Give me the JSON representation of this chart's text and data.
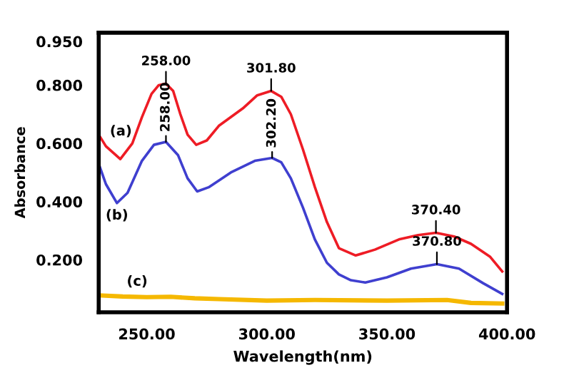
{
  "chart_data": {
    "type": "line",
    "xlabel": "Wavelength(nm)",
    "ylabel": "Absorbance",
    "xlim": [
      230,
      400
    ],
    "ylim": [
      0.02,
      0.98
    ],
    "xticks": [
      {
        "value": 250,
        "label": "250.00"
      },
      {
        "value": 300,
        "label": "300.00"
      },
      {
        "value": 350,
        "label": "350.00"
      },
      {
        "value": 400,
        "label": "400.00"
      }
    ],
    "yticks": [
      {
        "value": 0.2,
        "label": "0.200"
      },
      {
        "value": 0.4,
        "label": "0.400"
      },
      {
        "value": 0.6,
        "label": "0.600"
      },
      {
        "value": 0.8,
        "label": "0.800"
      },
      {
        "value": 0.95,
        "label": "0.950"
      }
    ],
    "grid": false,
    "legend": false,
    "marker": "none",
    "line_style": "solid",
    "series": [
      {
        "name": "(a)",
        "color": "#ee1c25",
        "x": [
          230,
          233,
          239,
          244,
          248,
          252,
          255,
          258,
          261,
          264,
          267,
          270.6,
          275,
          280,
          290,
          296,
          301.8,
          306,
          310,
          315,
          320,
          325,
          330,
          337,
          345,
          355,
          363,
          370.4,
          378,
          385,
          393,
          398
        ],
        "values": [
          0.63,
          0.59,
          0.546,
          0.6,
          0.69,
          0.77,
          0.8,
          0.805,
          0.78,
          0.7,
          0.63,
          0.595,
          0.61,
          0.66,
          0.72,
          0.765,
          0.78,
          0.76,
          0.7,
          0.58,
          0.45,
          0.33,
          0.24,
          0.215,
          0.235,
          0.27,
          0.285,
          0.293,
          0.28,
          0.255,
          0.21,
          0.16
        ]
      },
      {
        "name": "(b)",
        "color": "#3f3fcf",
        "x": [
          230,
          233,
          237.6,
          242,
          248,
          253,
          258,
          263,
          267,
          271,
          276,
          285,
          295,
          302.2,
          306,
          310,
          315,
          320,
          325,
          330,
          335,
          341,
          350,
          360,
          370.8,
          380,
          390,
          398
        ],
        "values": [
          0.53,
          0.46,
          0.395,
          0.43,
          0.54,
          0.595,
          0.605,
          0.56,
          0.48,
          0.435,
          0.45,
          0.5,
          0.54,
          0.55,
          0.535,
          0.48,
          0.38,
          0.27,
          0.19,
          0.15,
          0.13,
          0.122,
          0.14,
          0.17,
          0.185,
          0.17,
          0.12,
          0.083
        ]
      },
      {
        "name": "(c)",
        "color": "#f5b800",
        "x": [
          230,
          240,
          250,
          260,
          270,
          280,
          300,
          320,
          350,
          375,
          385,
          398
        ],
        "values": [
          0.078,
          0.074,
          0.072,
          0.073,
          0.068,
          0.065,
          0.06,
          0.062,
          0.06,
          0.062,
          0.052,
          0.05
        ]
      }
    ],
    "annotations": [
      {
        "text": "258.00",
        "x": 258,
        "y": 0.605
      },
      {
        "text": "258.00",
        "x": 258,
        "y": 0.805
      },
      {
        "text": "302.20",
        "x": 302.2,
        "y": 0.55
      },
      {
        "text": "301.80",
        "x": 301.8,
        "y": 0.78
      },
      {
        "text": "370.40",
        "x": 370.4,
        "y": 0.293
      },
      {
        "text": "370.80",
        "x": 370.8,
        "y": 0.185
      }
    ]
  }
}
